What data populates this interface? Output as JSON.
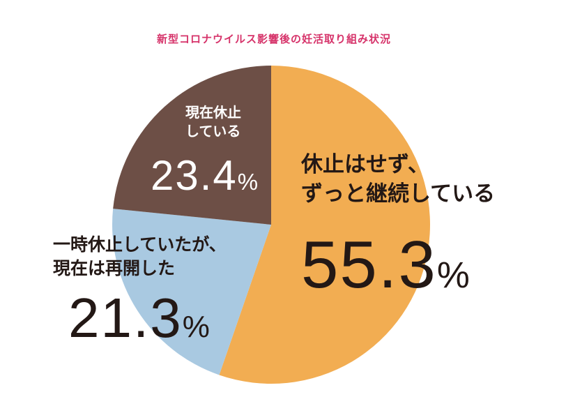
{
  "chart_data": {
    "type": "pie",
    "title": "新型コロナウイルス影響後の妊活取り組み状況",
    "slices": [
      {
        "label_line1": "休止はせず、",
        "label_line2": "ずっと継続している",
        "value": 55.3,
        "value_text": "55.3",
        "color": "#f2ad52"
      },
      {
        "label_line1": "一時休止していたが、",
        "label_line2": "現在は再開した",
        "value": 21.3,
        "value_text": "21.3",
        "color": "#a9c9e1"
      },
      {
        "label_line1": "現在休止",
        "label_line2": "している",
        "value": 23.4,
        "value_text": "23.4",
        "color": "#6d4f46"
      }
    ],
    "percent_sign": "%",
    "start": "top",
    "direction": "clockwise",
    "title_color": "#d6336a",
    "value_text_color": "#231815",
    "inner_label_color": "#ffffff"
  }
}
